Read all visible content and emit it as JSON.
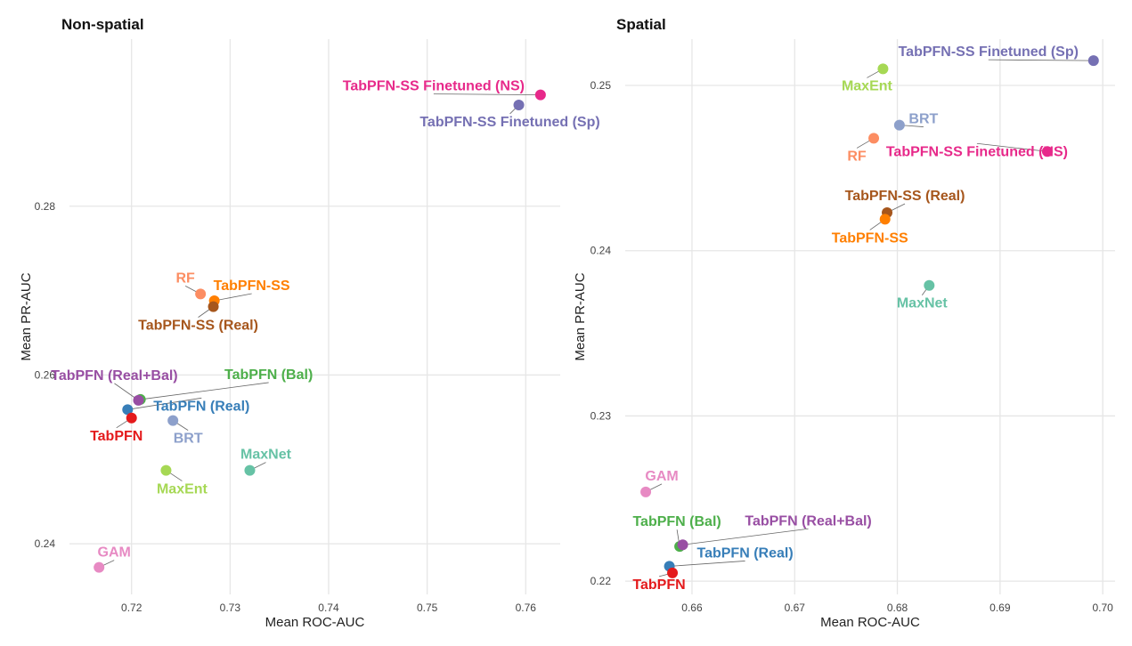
{
  "chart_data": [
    {
      "type": "scatter",
      "title": "Non-spatial",
      "xlabel": "Mean ROC-AUC",
      "ylabel": "Mean PR-AUC",
      "xlim": [
        0.7137,
        0.7635
      ],
      "ylim": [
        0.234,
        0.2998
      ],
      "xticks": [
        0.72,
        0.73,
        0.74,
        0.75,
        0.76
      ],
      "xtick_labels": [
        "0.72",
        "0.73",
        "0.74",
        "0.75",
        "0.76"
      ],
      "yticks": [
        0.24,
        0.26,
        0.28
      ],
      "ytick_labels": [
        "0.24",
        "0.26",
        "0.28"
      ],
      "grid": true,
      "legend": "none",
      "points": [
        {
          "label": "TabPFN-SS Finetuned (NS)",
          "x": 0.7615,
          "y": 0.2932,
          "color": "#e7298a"
        },
        {
          "label": "TabPFN-SS Finetuned (Sp)",
          "x": 0.7593,
          "y": 0.292,
          "color": "#7570b3"
        },
        {
          "label": "RF",
          "x": 0.727,
          "y": 0.2696,
          "color": "#fc8d62"
        },
        {
          "label": "TabPFN-SS",
          "x": 0.7284,
          "y": 0.2688,
          "color": "#ff7f00"
        },
        {
          "label": "TabPFN-SS (Real)",
          "x": 0.7283,
          "y": 0.2681,
          "color": "#a6561c"
        },
        {
          "label": "TabPFN (Bal)",
          "x": 0.7209,
          "y": 0.2571,
          "color": "#4daf4a"
        },
        {
          "label": "TabPFN (Real+Bal)",
          "x": 0.7207,
          "y": 0.257,
          "color": "#984ea3"
        },
        {
          "label": "TabPFN (Real)",
          "x": 0.7196,
          "y": 0.2559,
          "color": "#377eb8"
        },
        {
          "label": "TabPFN",
          "x": 0.72,
          "y": 0.2549,
          "color": "#e41a1c"
        },
        {
          "label": "BRT",
          "x": 0.7242,
          "y": 0.2546,
          "color": "#8da0cb"
        },
        {
          "label": "MaxNet",
          "x": 0.732,
          "y": 0.2487,
          "color": "#66c2a5"
        },
        {
          "label": "MaxEnt",
          "x": 0.7235,
          "y": 0.2487,
          "color": "#a6d854"
        },
        {
          "label": "GAM",
          "x": 0.7167,
          "y": 0.2372,
          "color": "#e78ac3"
        }
      ]
    },
    {
      "type": "scatter",
      "title": "Spatial",
      "xlabel": "Mean ROC-AUC",
      "ylabel": "Mean PR-AUC",
      "xlim": [
        0.6535,
        0.7012
      ],
      "ylim": [
        0.2192,
        0.2528
      ],
      "xticks": [
        0.66,
        0.67,
        0.68,
        0.69,
        0.7
      ],
      "xtick_labels": [
        "0.66",
        "0.67",
        "0.68",
        "0.69",
        "0.70"
      ],
      "yticks": [
        0.22,
        0.23,
        0.24,
        0.25
      ],
      "ytick_labels": [
        "0.22",
        "0.23",
        "0.24",
        "0.25"
      ],
      "grid": true,
      "legend": "none",
      "points": [
        {
          "label": "TabPFN-SS Finetuned (Sp)",
          "x": 0.6991,
          "y": 0.2515,
          "color": "#7570b3"
        },
        {
          "label": "MaxEnt",
          "x": 0.6786,
          "y": 0.251,
          "color": "#a6d854"
        },
        {
          "label": "BRT",
          "x": 0.6802,
          "y": 0.2476,
          "color": "#8da0cb"
        },
        {
          "label": "RF",
          "x": 0.6777,
          "y": 0.2468,
          "color": "#fc8d62"
        },
        {
          "label": "TabPFN-SS Finetuned (NS)",
          "x": 0.6946,
          "y": 0.246,
          "color": "#e7298a"
        },
        {
          "label": "TabPFN-SS (Real)",
          "x": 0.679,
          "y": 0.2423,
          "color": "#a6561c"
        },
        {
          "label": "TabPFN-SS",
          "x": 0.6788,
          "y": 0.2419,
          "color": "#ff7f00"
        },
        {
          "label": "MaxNet",
          "x": 0.6831,
          "y": 0.2379,
          "color": "#66c2a5"
        },
        {
          "label": "GAM",
          "x": 0.6555,
          "y": 0.2254,
          "color": "#e78ac3"
        },
        {
          "label": "TabPFN (Bal)",
          "x": 0.6588,
          "y": 0.2221,
          "color": "#4daf4a"
        },
        {
          "label": "TabPFN (Real+Bal)",
          "x": 0.6591,
          "y": 0.2222,
          "color": "#984ea3"
        },
        {
          "label": "TabPFN (Real)",
          "x": 0.6578,
          "y": 0.2209,
          "color": "#377eb8"
        },
        {
          "label": "TabPFN",
          "x": 0.6581,
          "y": 0.2205,
          "color": "#e41a1c"
        }
      ]
    }
  ]
}
